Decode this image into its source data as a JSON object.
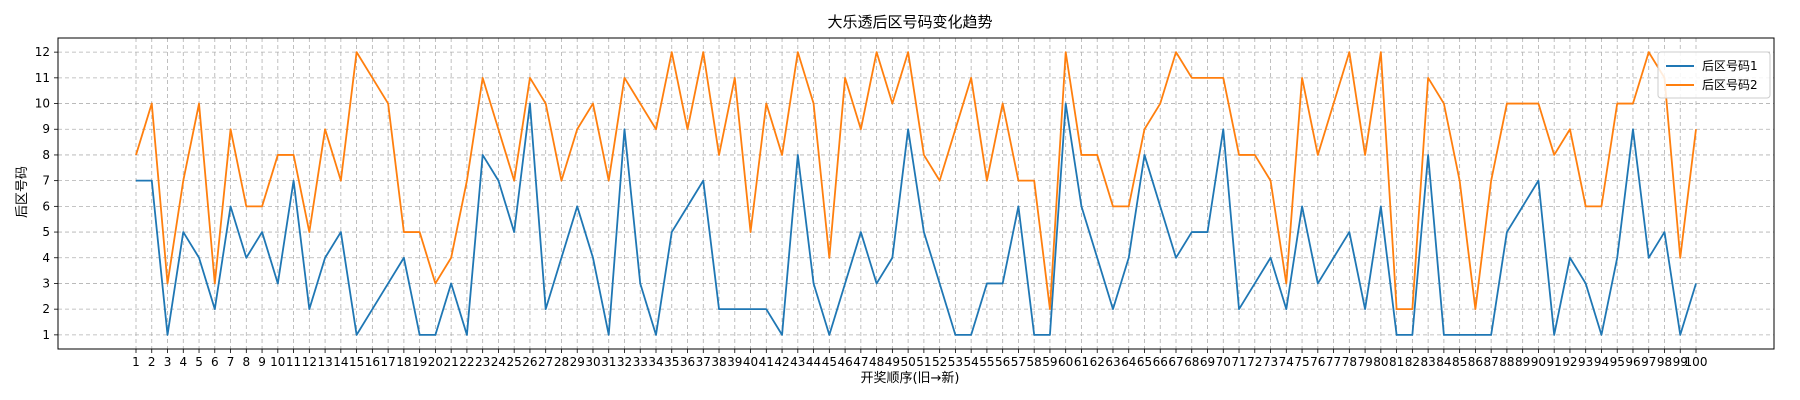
{
  "chart_data": {
    "type": "line",
    "title": "大乐透后区号码变化趋势",
    "xlabel": "开奖顺序(旧→新)",
    "ylabel": "后区号码",
    "x": [
      1,
      2,
      3,
      4,
      5,
      6,
      7,
      8,
      9,
      10,
      11,
      12,
      13,
      14,
      15,
      16,
      17,
      18,
      19,
      20,
      21,
      22,
      23,
      24,
      25,
      26,
      27,
      28,
      29,
      30,
      31,
      32,
      33,
      34,
      35,
      36,
      37,
      38,
      39,
      40,
      41,
      42,
      43,
      44,
      45,
      46,
      47,
      48,
      49,
      50,
      51,
      52,
      53,
      54,
      55,
      56,
      57,
      58,
      59,
      60,
      61,
      62,
      63,
      64,
      65,
      66,
      67,
      68,
      69,
      70,
      71,
      72,
      73,
      74,
      75,
      76,
      77,
      78,
      79,
      80,
      81,
      82,
      83,
      84,
      85,
      86,
      87,
      88,
      89,
      90,
      91,
      92,
      93,
      94,
      95,
      96,
      97,
      98,
      99,
      100
    ],
    "xlim": [
      -3.95,
      104.95
    ],
    "ylim": [
      0.45,
      12.55
    ],
    "yticks": [
      1,
      2,
      3,
      4,
      5,
      6,
      7,
      8,
      9,
      10,
      11,
      12
    ],
    "grid": true,
    "legend_position": "top-right",
    "series": [
      {
        "name": "后区号码1",
        "color": "#1f77b4",
        "values": [
          7,
          7,
          1,
          5,
          4,
          2,
          6,
          4,
          5,
          3,
          7,
          2,
          4,
          5,
          1,
          2,
          3,
          4,
          1,
          1,
          3,
          1,
          8,
          7,
          5,
          10,
          2,
          4,
          6,
          4,
          1,
          9,
          3,
          1,
          5,
          6,
          7,
          2,
          2,
          2,
          2,
          1,
          8,
          3,
          1,
          3,
          5,
          3,
          4,
          9,
          5,
          3,
          1,
          1,
          3,
          3,
          6,
          1,
          1,
          10,
          6,
          4,
          2,
          4,
          8,
          6,
          4,
          5,
          5,
          9,
          2,
          3,
          4,
          2,
          6,
          3,
          4,
          5,
          2,
          6,
          1,
          1,
          8,
          1,
          1,
          1,
          1,
          5,
          6,
          7,
          1,
          4,
          3,
          1,
          4,
          9,
          4,
          5,
          1,
          3
        ]
      },
      {
        "name": "后区号码2",
        "color": "#ff7f0e",
        "values": [
          8,
          10,
          3,
          7,
          10,
          3,
          9,
          6,
          6,
          8,
          8,
          5,
          9,
          7,
          12,
          11,
          10,
          5,
          5,
          3,
          4,
          7,
          11,
          9,
          7,
          11,
          10,
          7,
          9,
          10,
          7,
          11,
          10,
          9,
          12,
          9,
          12,
          8,
          11,
          5,
          10,
          8,
          12,
          10,
          4,
          11,
          9,
          12,
          10,
          12,
          8,
          7,
          9,
          11,
          7,
          10,
          7,
          7,
          2,
          12,
          8,
          8,
          6,
          6,
          9,
          10,
          12,
          11,
          11,
          11,
          8,
          8,
          7,
          3,
          11,
          8,
          10,
          12,
          8,
          12,
          2,
          2,
          11,
          10,
          7,
          2,
          7,
          10,
          10,
          10,
          8,
          9,
          6,
          6,
          10,
          10,
          12,
          11,
          4,
          9
        ]
      }
    ]
  }
}
